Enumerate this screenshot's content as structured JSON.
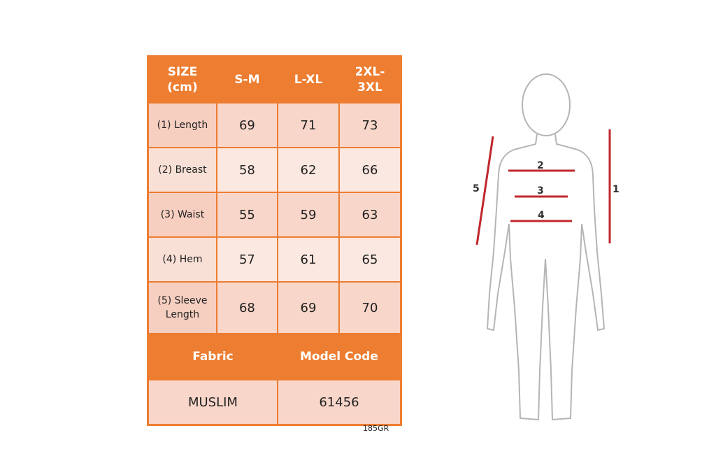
{
  "table": {
    "header": [
      "SIZE\n(cm)",
      "S-M",
      "L-XL",
      "2XL-\n3XL"
    ],
    "rows": [
      {
        "label": "(1) Length",
        "values": [
          "69",
          "71",
          "73"
        ]
      },
      {
        "label": "(2) Breast",
        "values": [
          "58",
          "62",
          "66"
        ]
      },
      {
        "label": "(3) Waist",
        "values": [
          "55",
          "59",
          "63"
        ]
      },
      {
        "label": "(4) Hem",
        "values": [
          "57",
          "61",
          "65"
        ]
      },
      {
        "label": "(5) Sleeve\nLength",
        "values": [
          "68",
          "69",
          "70"
        ]
      }
    ],
    "footer_header": [
      "Fabric",
      "Model Code"
    ],
    "footer_values": [
      "MUSLIM",
      "61456"
    ],
    "note": "185GR"
  },
  "figure": {
    "labels": [
      "1",
      "2",
      "3",
      "4",
      "5"
    ],
    "line_color": "#c0272d",
    "header_color": "#ed7d31"
  }
}
